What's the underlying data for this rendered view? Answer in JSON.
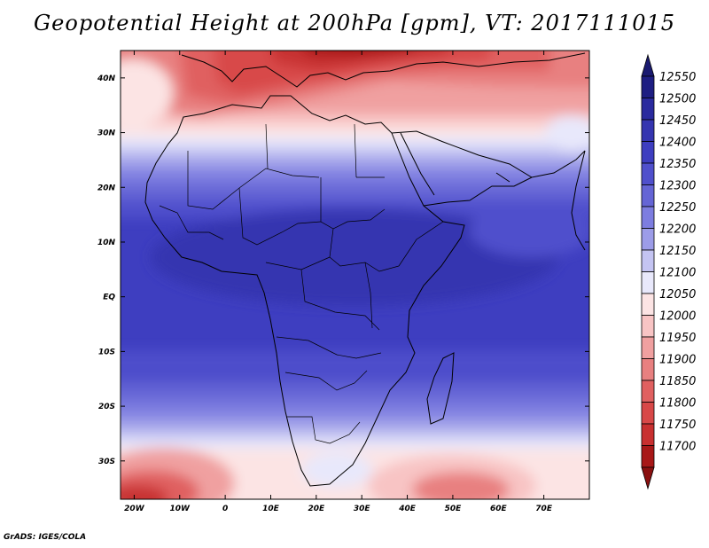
{
  "title": "Geopotential Height at 200hPa [gpm], VT: 2017111015",
  "footer": "GrADS: IGES/COLA",
  "map": {
    "projection": "latlon",
    "lon_range": [
      -23,
      80
    ],
    "lat_range": [
      -37,
      45
    ],
    "field": "200 hPa geopotential height",
    "units": "gpm",
    "valid_time": "2017111015"
  },
  "axes": {
    "x_ticks": [
      {
        "lon": -20,
        "label": "20W"
      },
      {
        "lon": -10,
        "label": "10W"
      },
      {
        "lon": 0,
        "label": "0"
      },
      {
        "lon": 10,
        "label": "10E"
      },
      {
        "lon": 20,
        "label": "20E"
      },
      {
        "lon": 30,
        "label": "30E"
      },
      {
        "lon": 40,
        "label": "40E"
      },
      {
        "lon": 50,
        "label": "50E"
      },
      {
        "lon": 60,
        "label": "60E"
      },
      {
        "lon": 70,
        "label": "70E"
      }
    ],
    "y_ticks": [
      {
        "lat": 40,
        "label": "40N"
      },
      {
        "lat": 30,
        "label": "30N"
      },
      {
        "lat": 20,
        "label": "20N"
      },
      {
        "lat": 10,
        "label": "10N"
      },
      {
        "lat": 0,
        "label": "EQ"
      },
      {
        "lat": -10,
        "label": "10S"
      },
      {
        "lat": -20,
        "label": "20S"
      },
      {
        "lat": -30,
        "label": "30S"
      }
    ]
  },
  "colorbar": {
    "levels": [
      {
        "label": "12550",
        "color": "#1e1e82"
      },
      {
        "label": "12500",
        "color": "#2a2a9e"
      },
      {
        "label": "12450",
        "color": "#3535b0"
      },
      {
        "label": "12400",
        "color": "#3e3ec0"
      },
      {
        "label": "12350",
        "color": "#5050cc"
      },
      {
        "label": "12300",
        "color": "#6565d5"
      },
      {
        "label": "12250",
        "color": "#7d7de0"
      },
      {
        "label": "12200",
        "color": "#9c9ce8"
      },
      {
        "label": "12150",
        "color": "#c4c4f2"
      },
      {
        "label": "12100",
        "color": "#e8e8fb"
      },
      {
        "label": "12050",
        "color": "#fce4e4"
      },
      {
        "label": "12000",
        "color": "#f8c4c4"
      },
      {
        "label": "11950",
        "color": "#f0a0a0"
      },
      {
        "label": "11900",
        "color": "#e88080"
      },
      {
        "label": "11850",
        "color": "#e06060"
      },
      {
        "label": "11800",
        "color": "#d84848"
      },
      {
        "label": "11750",
        "color": "#c83030"
      },
      {
        "label": "11700",
        "color": "#a81818"
      }
    ],
    "top_arrow_color": "#1a1a70",
    "bottom_arrow_color": "#8a1010"
  }
}
